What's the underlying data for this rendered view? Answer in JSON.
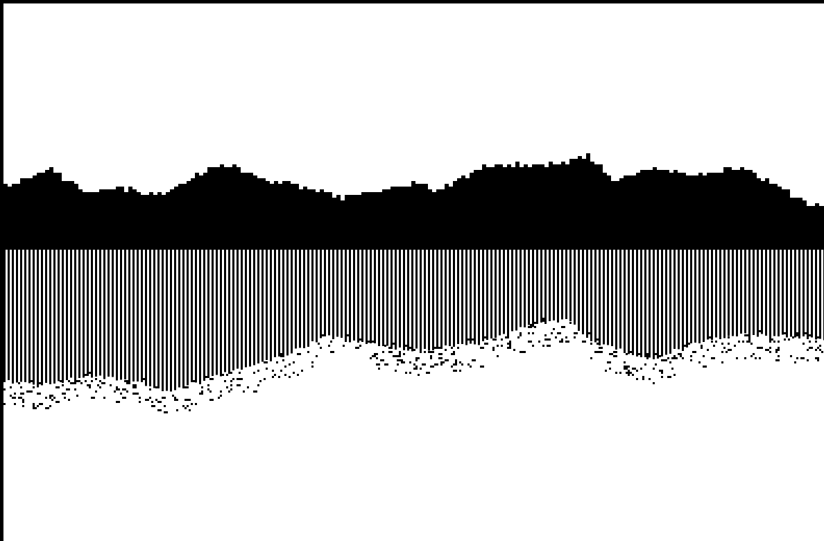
{
  "scene": {
    "style": "1-bit monochrome landscape",
    "palette": {
      "ink": "#000000",
      "paper": "#ffffff"
    },
    "layers": [
      {
        "name": "mountain-ridge",
        "fill": "solid"
      },
      {
        "name": "vertical-stripe-band",
        "fill": "striped"
      },
      {
        "name": "shore-speckle",
        "fill": "dithered"
      },
      {
        "name": "empty-ground",
        "fill": "blank"
      }
    ]
  }
}
